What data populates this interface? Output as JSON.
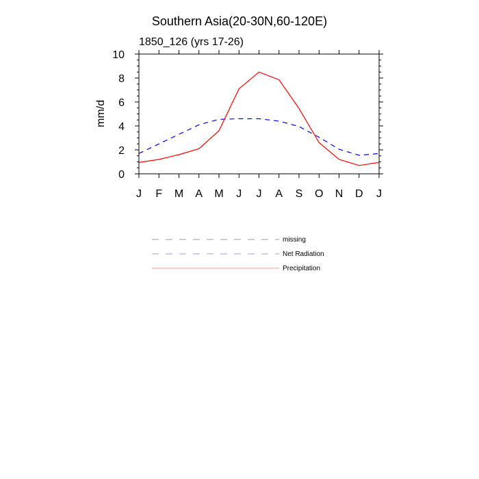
{
  "chart_data": {
    "type": "line",
    "title": "Southern Asia(20-30N,60-120E)",
    "subtitle": "1850_126 (yrs 17-26)",
    "ylabel": "mm/d",
    "xlabel": "",
    "categories": [
      "J",
      "F",
      "M",
      "A",
      "M",
      "J",
      "J",
      "A",
      "S",
      "O",
      "N",
      "D",
      "J"
    ],
    "ylim": [
      0,
      10
    ],
    "yticks": [
      "0",
      "2",
      "4",
      "6",
      "8",
      "10"
    ],
    "grid": false,
    "legend_position": "below",
    "series": [
      {
        "name": "Net Radiation",
        "color": "#0000ff",
        "dash": "dashed",
        "values": [
          1.7,
          2.5,
          3.3,
          4.1,
          4.55,
          4.6,
          4.6,
          4.4,
          3.95,
          3.05,
          2.05,
          1.55,
          1.7
        ]
      },
      {
        "name": "Precipitation",
        "color": "#ff0000",
        "dash": "solid",
        "values": [
          0.95,
          1.2,
          1.6,
          2.1,
          3.6,
          7.1,
          8.5,
          7.85,
          5.45,
          2.6,
          1.2,
          0.7,
          0.95
        ]
      }
    ],
    "legend": [
      {
        "name": "missing",
        "color": "#9a9a9a",
        "dash": "dashed"
      },
      {
        "name": "Net Radiation",
        "color": "#9a9aff",
        "dash": "dashed"
      },
      {
        "name": "Precipitation",
        "color": "#ff9a9a",
        "dash": "solid"
      }
    ]
  }
}
